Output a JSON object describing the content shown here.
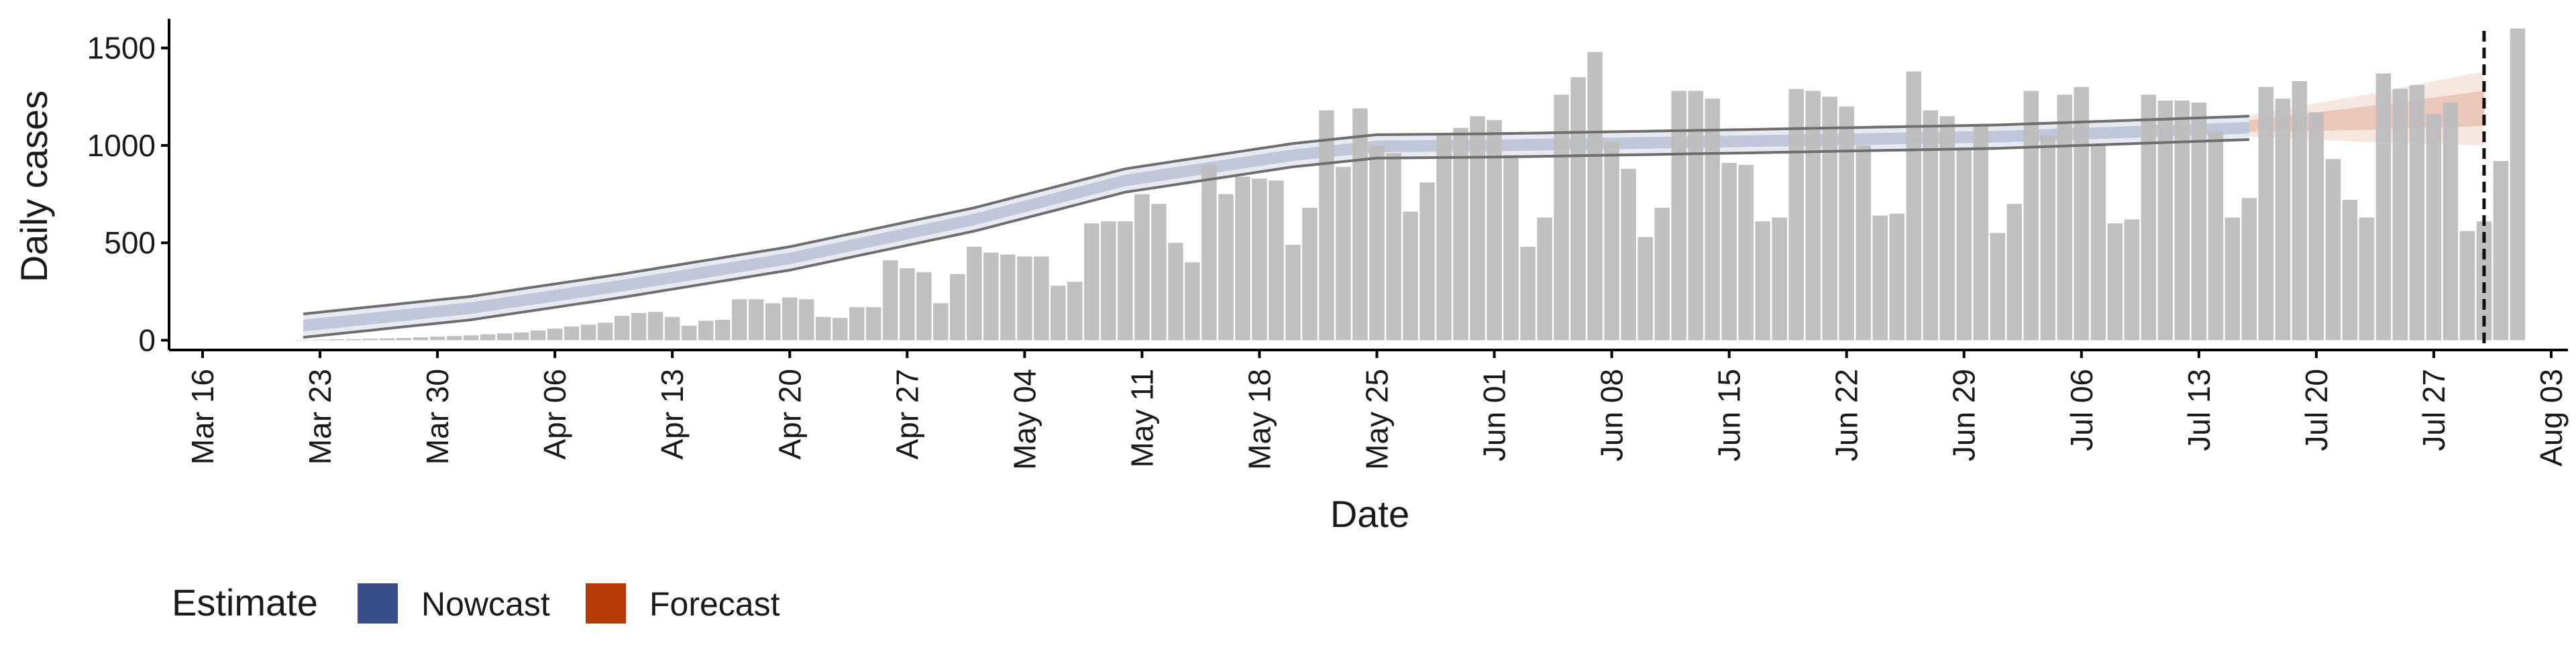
{
  "chart_data": {
    "type": "bar",
    "title": "",
    "xlabel": "Date",
    "ylabel": "Daily cases",
    "ylim": [
      -50,
      1650
    ],
    "yticks": [
      0,
      500,
      1000,
      1500
    ],
    "xlim": [
      "2020-03-14",
      "2020-08-04"
    ],
    "xticks": [
      {
        "date": "2020-03-16",
        "label": "Mar 16"
      },
      {
        "date": "2020-03-23",
        "label": "Mar 23"
      },
      {
        "date": "2020-03-30",
        "label": "Mar 30"
      },
      {
        "date": "2020-04-06",
        "label": "Apr 06"
      },
      {
        "date": "2020-04-13",
        "label": "Apr 13"
      },
      {
        "date": "2020-04-20",
        "label": "Apr 20"
      },
      {
        "date": "2020-04-27",
        "label": "Apr 27"
      },
      {
        "date": "2020-05-04",
        "label": "May 04"
      },
      {
        "date": "2020-05-11",
        "label": "May 11"
      },
      {
        "date": "2020-05-18",
        "label": "May 18"
      },
      {
        "date": "2020-05-25",
        "label": "May 25"
      },
      {
        "date": "2020-06-01",
        "label": "Jun 01"
      },
      {
        "date": "2020-06-08",
        "label": "Jun 08"
      },
      {
        "date": "2020-06-15",
        "label": "Jun 15"
      },
      {
        "date": "2020-06-22",
        "label": "Jun 22"
      },
      {
        "date": "2020-06-29",
        "label": "Jun 29"
      },
      {
        "date": "2020-07-06",
        "label": "Jul 06"
      },
      {
        "date": "2020-07-13",
        "label": "Jul 13"
      },
      {
        "date": "2020-07-20",
        "label": "Jul 20"
      },
      {
        "date": "2020-07-27",
        "label": "Jul 27"
      },
      {
        "date": "2020-08-03",
        "label": "Aug 03"
      }
    ],
    "grid": false,
    "cutoff_date": "2020-07-30",
    "bars": {
      "start_date": "2020-03-22",
      "values": [
        2,
        3,
        5,
        6,
        8,
        10,
        12,
        15,
        18,
        22,
        25,
        30,
        35,
        40,
        50,
        60,
        70,
        80,
        90,
        125,
        140,
        145,
        120,
        75,
        100,
        105,
        210,
        210,
        190,
        220,
        210,
        120,
        115,
        170,
        170,
        410,
        370,
        350,
        190,
        340,
        480,
        450,
        440,
        430,
        430,
        280,
        300,
        600,
        610,
        610,
        750,
        700,
        500,
        400,
        900,
        750,
        840,
        830,
        820,
        490,
        680,
        1180,
        890,
        1190,
        1000,
        960,
        660,
        810,
        1050,
        1090,
        1150,
        1130,
        950,
        480,
        630,
        1260,
        1350,
        1480,
        1020,
        880,
        530,
        680,
        1280,
        1280,
        1240,
        910,
        900,
        610,
        630,
        1290,
        1280,
        1250,
        1200,
        1000,
        640,
        650,
        1380,
        1180,
        1150,
        990,
        1100,
        550,
        700,
        1280,
        1050,
        1260,
        1300,
        1000,
        600,
        620,
        1260,
        1230,
        1230,
        1220,
        1070,
        630,
        730,
        1300,
        1240,
        1330,
        1170,
        930,
        720,
        630,
        1370,
        1290,
        1310,
        1160,
        1220,
        560,
        610,
        920,
        1600
      ]
    },
    "series": [
      {
        "name": "Nowcast",
        "color": "#3a4f8a",
        "start_date": "2020-03-22",
        "end_date": "2020-07-16",
        "median_knots": [
          [
            "2020-03-22",
            75
          ],
          [
            "2020-04-01",
            165
          ],
          [
            "2020-04-10",
            280
          ],
          [
            "2020-04-20",
            420
          ],
          [
            "2020-05-01",
            620
          ],
          [
            "2020-05-10",
            820
          ],
          [
            "2020-05-20",
            950
          ],
          [
            "2020-05-25",
            995
          ],
          [
            "2020-06-01",
            1000
          ],
          [
            "2020-06-15",
            1020
          ],
          [
            "2020-07-01",
            1045
          ],
          [
            "2020-07-16",
            1090
          ]
        ],
        "band50_width": 30,
        "band90_width": 55,
        "outer_width": 60
      },
      {
        "name": "Forecast",
        "color": "#b53a06",
        "start_date": "2020-07-16",
        "end_date": "2020-07-30",
        "median_knots": [
          [
            "2020-07-16",
            1100
          ],
          [
            "2020-07-23",
            1140
          ],
          [
            "2020-07-30",
            1190
          ]
        ],
        "band50_width_start": 30,
        "band50_width_end": 90,
        "band90_width_start": 55,
        "band90_width_end": 190
      }
    ],
    "legend": {
      "title": "Estimate",
      "position": "bottom-left",
      "items": [
        {
          "label": "Nowcast",
          "color": "#3a4f8a"
        },
        {
          "label": "Forecast",
          "color": "#b53a06"
        }
      ]
    },
    "colors": {
      "bars": "#bdbdbd",
      "outline": "#6e6e6e",
      "axis": "#000000"
    }
  }
}
